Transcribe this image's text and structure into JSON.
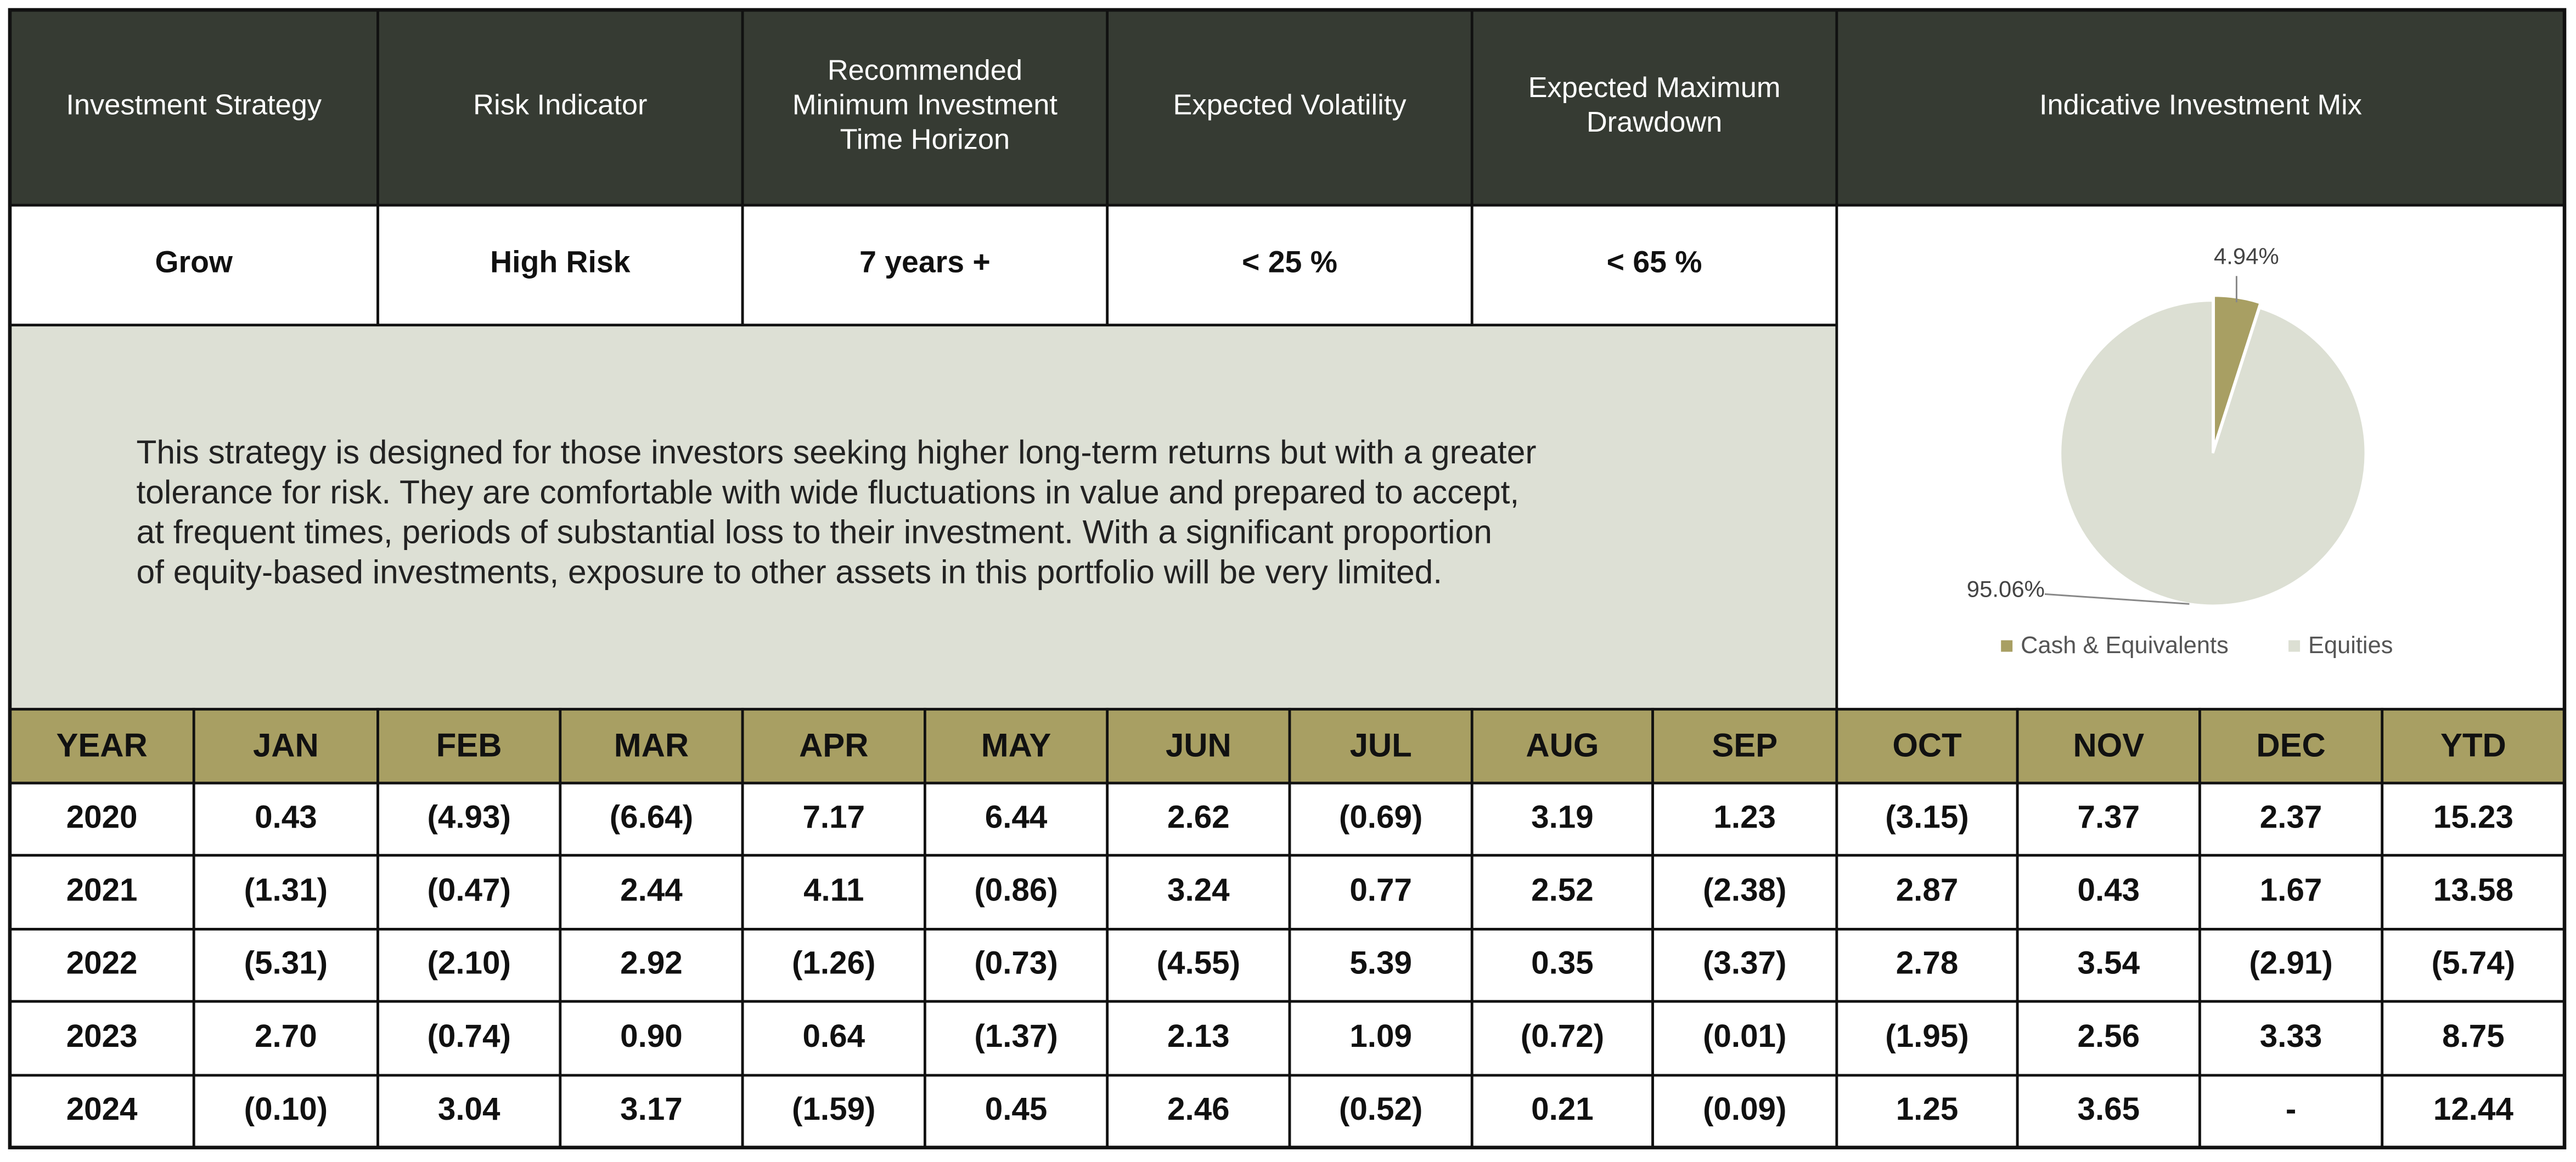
{
  "summary": {
    "headers": [
      [
        "Investment Strategy"
      ],
      [
        "Risk Indicator"
      ],
      [
        "Recommended",
        "Minimum Investment",
        "Time Horizon"
      ],
      [
        "Expected Volatility"
      ],
      [
        "Expected Maximum",
        "Drawdown"
      ]
    ],
    "values": [
      "Grow",
      "High Risk",
      "7 years +",
      "< 25 %",
      "< 65 %"
    ]
  },
  "description": [
    "This strategy is designed for those investors seeking higher long-term returns but with a greater",
    "tolerance for risk.  They are comfortable with wide fluctuations in value and prepared to accept,",
    "at frequent times, periods of substantial loss to their investment.  With a significant proportion",
    "of equity-based investments, exposure to other assets in this portfolio will be very limited."
  ],
  "mix": {
    "type": "pie",
    "title": "Indicative Investment Mix",
    "categories": [
      "Cash & Equivalents",
      "Equities"
    ],
    "values": [
      4.94,
      95.06
    ],
    "value_labels": [
      "4.94%",
      "95.06%"
    ],
    "colors": [
      "#a89f63",
      "#dcdfd3"
    ]
  },
  "returns": {
    "header": [
      "YEAR",
      "JAN",
      "FEB",
      "MAR",
      "APR",
      "MAY",
      "JUN",
      "JUL",
      "AUG",
      "SEP",
      "OCT",
      "NOV",
      "DEC",
      "YTD"
    ],
    "rows": [
      [
        "2020",
        "0.43",
        "(4.93)",
        "(6.64)",
        "7.17",
        "6.44",
        "2.62",
        "(0.69)",
        "3.19",
        "1.23",
        "(3.15)",
        "7.37",
        "2.37",
        "15.23"
      ],
      [
        "2021",
        "(1.31)",
        "(0.47)",
        "2.44",
        "4.11",
        "(0.86)",
        "3.24",
        "0.77",
        "2.52",
        "(2.38)",
        "2.87",
        "0.43",
        "1.67",
        "13.58"
      ],
      [
        "2022",
        "(5.31)",
        "(2.10)",
        "2.92",
        "(1.26)",
        "(0.73)",
        "(4.55)",
        "5.39",
        "0.35",
        "(3.37)",
        "2.78",
        "3.54",
        "(2.91)",
        "(5.74)"
      ],
      [
        "2023",
        "2.70",
        "(0.74)",
        "0.90",
        "0.64",
        "(1.37)",
        "2.13",
        "1.09",
        "(0.72)",
        "(0.01)",
        "(1.95)",
        "2.56",
        "3.33",
        "8.75"
      ],
      [
        "2024",
        "(0.10)",
        "3.04",
        "3.17",
        "(1.59)",
        "0.45",
        "2.46",
        "(0.52)",
        "0.21",
        "(0.09)",
        "1.25",
        "3.65",
        "-",
        "12.44"
      ]
    ]
  }
}
